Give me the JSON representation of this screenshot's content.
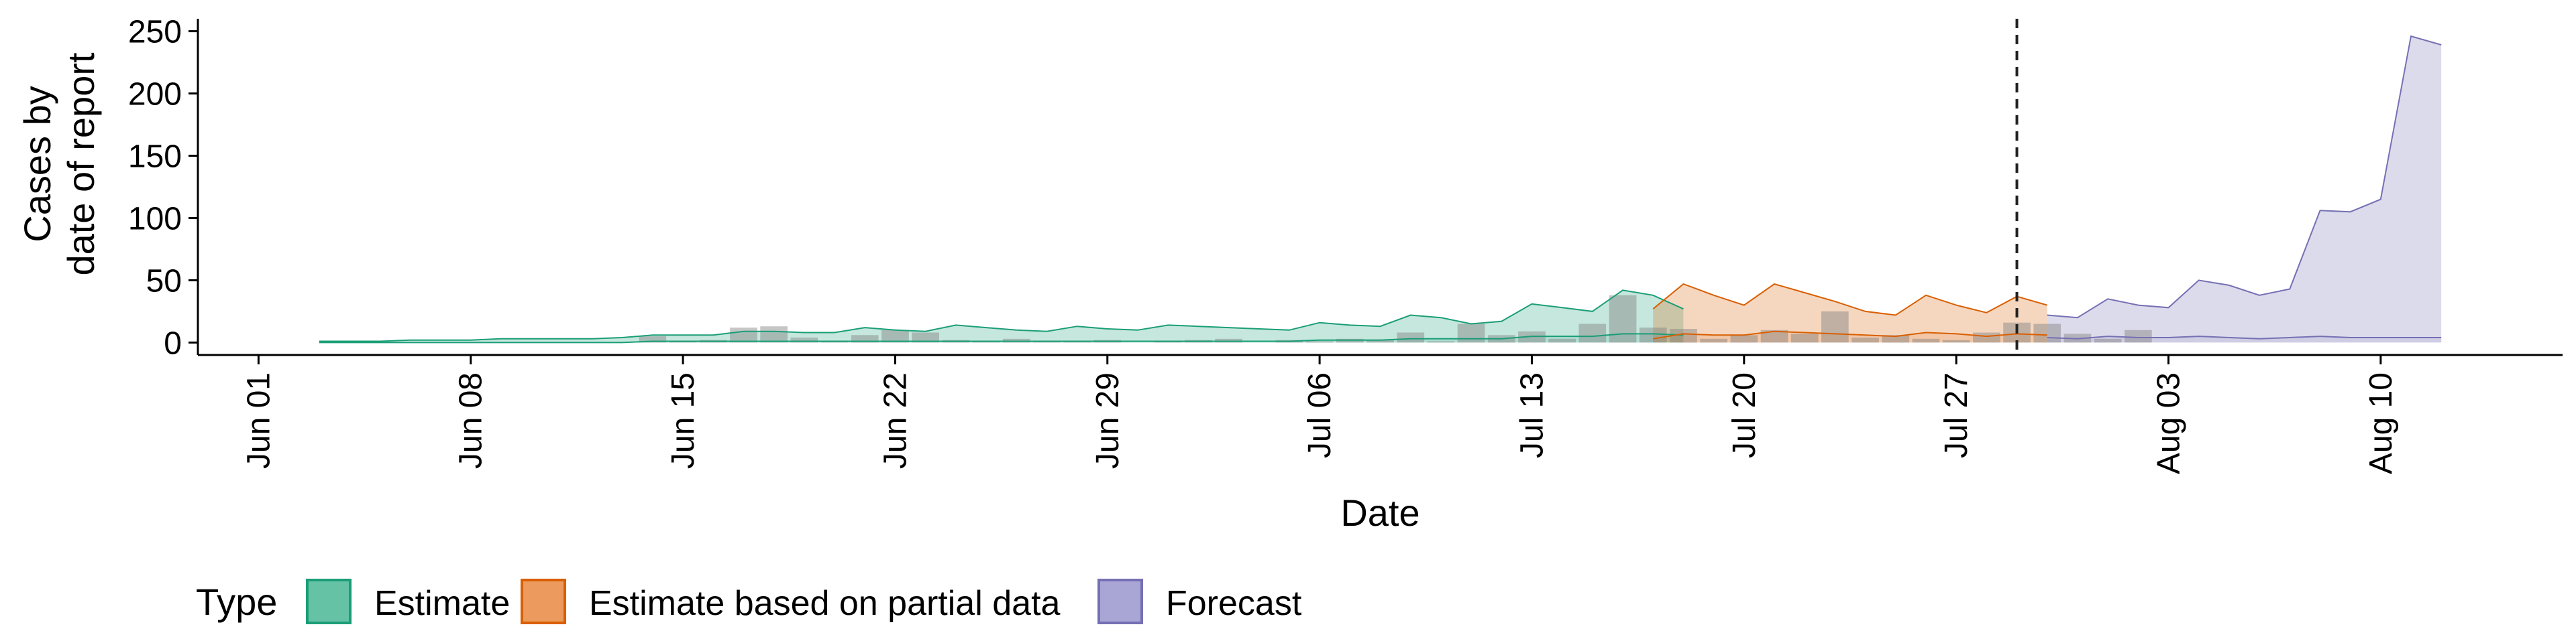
{
  "chart_data": {
    "type": "area",
    "xlabel": "Date",
    "ylabel_lines": [
      "Cases by",
      "date of report"
    ],
    "ylim": [
      -10,
      260
    ],
    "yticks": [
      0,
      50,
      100,
      150,
      200,
      250
    ],
    "x_start": "2020-05-30",
    "x_end": "2020-08-16",
    "xtick_labels": [
      {
        "date": "2020-06-01",
        "label": "Jun 01"
      },
      {
        "date": "2020-06-08",
        "label": "Jun 08"
      },
      {
        "date": "2020-06-15",
        "label": "Jun 15"
      },
      {
        "date": "2020-06-22",
        "label": "Jun 22"
      },
      {
        "date": "2020-06-29",
        "label": "Jun 29"
      },
      {
        "date": "2020-07-06",
        "label": "Jul 06"
      },
      {
        "date": "2020-07-13",
        "label": "Jul 13"
      },
      {
        "date": "2020-07-20",
        "label": "Jul 20"
      },
      {
        "date": "2020-07-27",
        "label": "Jul 27"
      },
      {
        "date": "2020-08-03",
        "label": "Aug 03"
      },
      {
        "date": "2020-08-10",
        "label": "Aug 10"
      }
    ],
    "vline_date": "2020-07-29",
    "legend": {
      "title": "Type",
      "position": "bottom-left",
      "items": [
        {
          "label": "Estimate",
          "fill": "#66c2a5",
          "stroke": "#1b9e77"
        },
        {
          "label": "Estimate based on partial data",
          "fill": "#ec9a5e",
          "stroke": "#d95f02"
        },
        {
          "label": "Forecast",
          "fill": "#a9a5d4",
          "stroke": "#7570b3"
        }
      ]
    },
    "series": [
      {
        "name": "Estimate",
        "color": "#1b9e77",
        "start": "2020-06-03",
        "upper": [
          1,
          1,
          1,
          2,
          2,
          2,
          3,
          3,
          3,
          3,
          4,
          6,
          6,
          6,
          9,
          9,
          8,
          8,
          12,
          10,
          9,
          14,
          12,
          10,
          9,
          13,
          11,
          10,
          14,
          13,
          12,
          11,
          10,
          16,
          14,
          13,
          22,
          20,
          15,
          17,
          31,
          28,
          25,
          42,
          38,
          27
        ],
        "lower": [
          0,
          0,
          0,
          0,
          0,
          0,
          0,
          0,
          0,
          0,
          0,
          1,
          1,
          1,
          1,
          1,
          1,
          1,
          1,
          1,
          1,
          1,
          1,
          1,
          1,
          1,
          1,
          1,
          1,
          1,
          1,
          1,
          1,
          2,
          2,
          2,
          3,
          3,
          3,
          3,
          5,
          5,
          5,
          7,
          7,
          6
        ]
      },
      {
        "name": "Estimate based on partial data",
        "color": "#d95f02",
        "start": "2020-07-17",
        "upper": [
          27,
          47,
          38,
          30,
          47,
          40,
          33,
          25,
          22,
          38,
          30,
          24,
          37,
          30
        ],
        "lower": [
          3,
          7,
          6,
          6,
          9,
          8,
          7,
          6,
          5,
          8,
          7,
          5,
          7,
          6
        ]
      },
      {
        "name": "Forecast",
        "color": "#7570b3",
        "start": "2020-07-30",
        "upper": [
          22,
          20,
          35,
          30,
          28,
          50,
          46,
          38,
          43,
          106,
          105,
          115,
          246,
          239
        ],
        "lower": [
          4,
          3,
          5,
          4,
          4,
          5,
          4,
          3,
          4,
          5,
          4,
          4,
          4,
          4
        ]
      }
    ],
    "reported": {
      "start": "2020-06-03",
      "values": [
        0,
        0,
        0,
        0,
        0,
        0,
        0,
        0,
        0,
        0,
        0,
        5,
        1,
        2,
        12,
        13,
        4,
        1,
        6,
        10,
        8,
        2,
        1,
        3,
        1,
        1,
        2,
        0,
        1,
        2,
        3,
        0,
        2,
        1,
        3,
        2,
        8,
        1,
        15,
        6,
        9,
        3,
        15,
        38,
        12,
        11,
        3,
        6,
        10,
        7,
        25,
        4,
        6,
        3,
        2,
        8,
        16,
        15,
        7,
        3,
        10
      ]
    }
  }
}
